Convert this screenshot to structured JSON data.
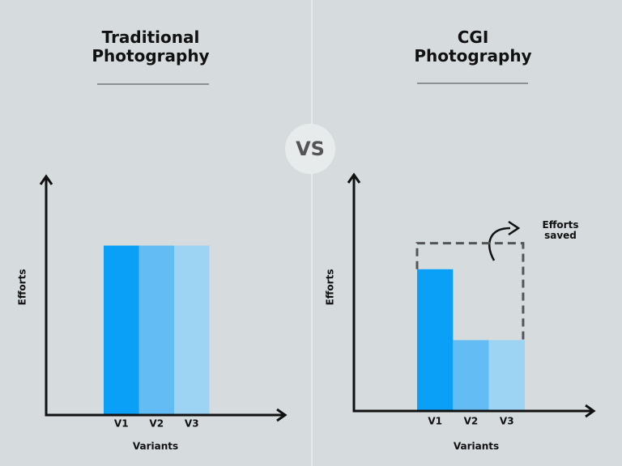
{
  "chart_data": [
    {
      "type": "bar",
      "title": "Traditional Photography",
      "x_label": "Variants",
      "y_label": "Efforts",
      "categories": [
        "V1",
        "V2",
        "V3"
      ],
      "values": [
        71,
        71,
        71
      ],
      "colors": [
        "#0aa0f7",
        "#63bdf4",
        "#9dd3f3"
      ],
      "ylim": [
        0,
        100
      ]
    },
    {
      "type": "bar",
      "title": "CGI Photography",
      "x_label": "Variants",
      "y_label": "Efforts",
      "categories": [
        "V1",
        "V2",
        "V3"
      ],
      "values": [
        60,
        30,
        30
      ],
      "colors": [
        "#0aa0f7",
        "#63bdf4",
        "#9dd3f3"
      ],
      "ylim": [
        0,
        100
      ],
      "annotation": "Efforts saved"
    }
  ],
  "versus": "VS"
}
